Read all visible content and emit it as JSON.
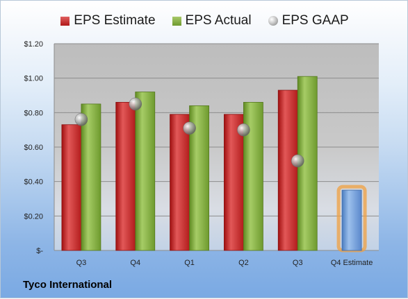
{
  "company": "Tyco International",
  "colors": {
    "estimate": "#c0282a",
    "actual": "#7fa83c",
    "gaap": "#9a9a9a",
    "estimate_future": "#6a9ad8",
    "estimate_future_glow": "#f0a040"
  },
  "chart_data": {
    "type": "bar",
    "categories": [
      "Q3",
      "Q4",
      "Q1",
      "Q2",
      "Q3",
      "Q4 Estimate"
    ],
    "series": [
      {
        "name": "EPS Estimate",
        "values": [
          0.73,
          0.86,
          0.79,
          0.79,
          0.93,
          0.35
        ]
      },
      {
        "name": "EPS Actual",
        "values": [
          0.85,
          0.92,
          0.84,
          0.86,
          1.01,
          null
        ]
      },
      {
        "name": "EPS GAAP",
        "type": "scatter",
        "values": [
          0.76,
          0.85,
          0.71,
          0.7,
          0.52,
          null
        ]
      }
    ],
    "yticks": [
      "$-",
      "$0.20",
      "$0.40",
      "$0.60",
      "$0.80",
      "$1.00",
      "$1.20"
    ],
    "ylim": [
      0,
      1.2
    ],
    "grid": true,
    "legend_position": "top"
  }
}
